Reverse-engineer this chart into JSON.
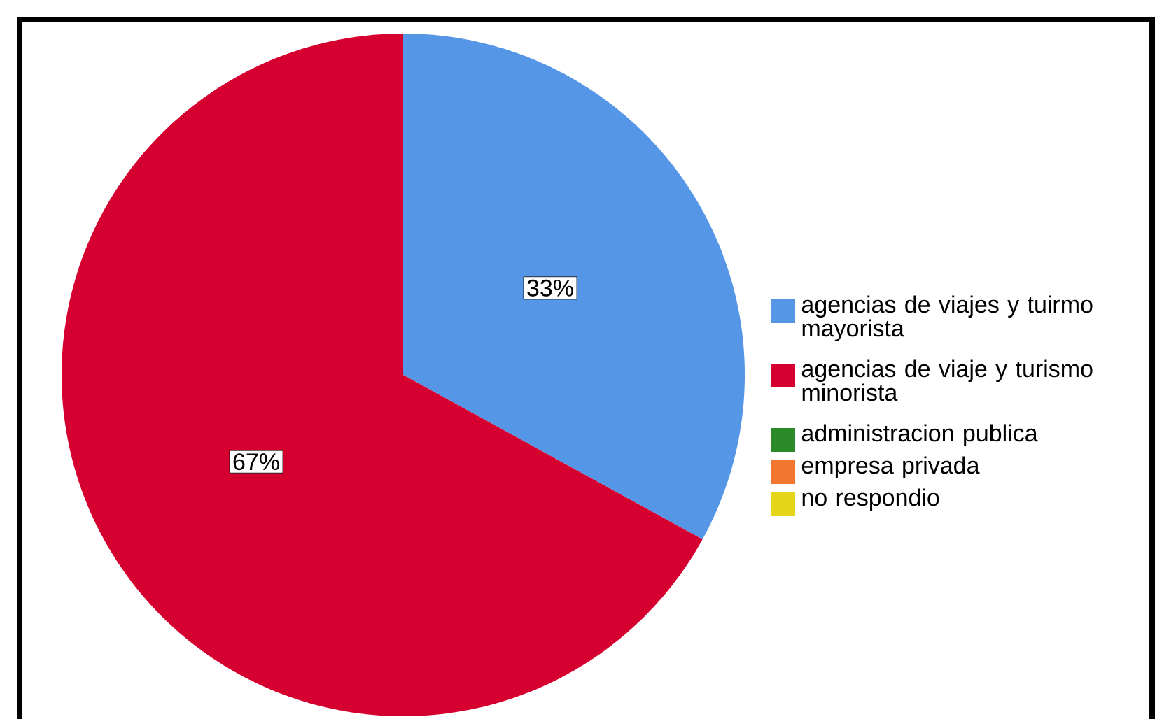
{
  "chart_data": {
    "type": "pie",
    "categories": [
      "agencias de viajes y tuirmo mayorista",
      "agencias de viaje y turismo minorista",
      "administracion publica",
      "empresa privada",
      "no respondio"
    ],
    "values": [
      33,
      67,
      0,
      0,
      0
    ],
    "colors": [
      "#5596e6",
      "#d5002f",
      "#2a8a2a",
      "#f27530",
      "#e6d619"
    ],
    "value_labels": [
      "33%",
      "67%",
      null,
      null,
      null
    ],
    "legend": "right"
  }
}
